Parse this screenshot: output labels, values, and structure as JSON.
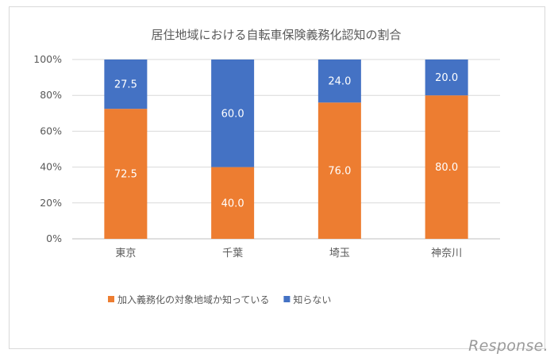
{
  "chart_data": {
    "type": "bar",
    "stacked": true,
    "title": "居住地域における自転車保険義務化認知の割合",
    "categories": [
      "東京",
      "千葉",
      "埼玉",
      "神奈川"
    ],
    "series": [
      {
        "name": "加入義務化の対象地域か知っている",
        "values": [
          72.5,
          40.0,
          76.0,
          80.0
        ],
        "color": "#ed7d31"
      },
      {
        "name": "知らない",
        "values": [
          27.5,
          60.0,
          24.0,
          20.0
        ],
        "color": "#4472c4"
      }
    ],
    "data_labels": [
      [
        "72.5",
        "40.0",
        "76.0",
        "80.0"
      ],
      [
        "27.5",
        "60.0",
        "24.0",
        "20.0"
      ]
    ],
    "y_ticks": [
      "0%",
      "20%",
      "40%",
      "60%",
      "80%",
      "100%"
    ],
    "ylim": [
      0,
      100
    ],
    "grid": true,
    "legend_position": "bottom"
  },
  "watermark": "Response."
}
